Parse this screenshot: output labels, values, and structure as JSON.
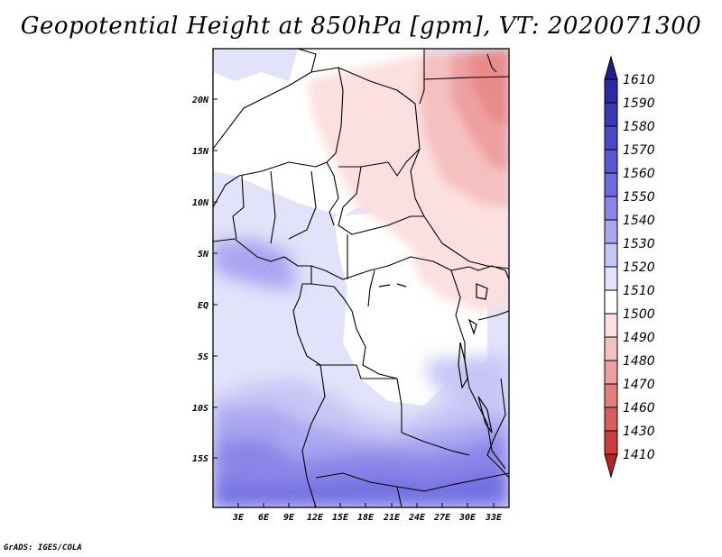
{
  "title": "Geopotential Height at 850hPa [gpm], VT: 2020071300",
  "credit": "GrADS: IGES/COLA",
  "lat_labels": [
    "20N",
    "15N",
    "10N",
    "5N",
    "EQ",
    "5S",
    "10S",
    "15S"
  ],
  "lon_labels": [
    "3E",
    "6E",
    "9E",
    "12E",
    "15E",
    "18E",
    "21E",
    "24E",
    "27E",
    "30E",
    "33E"
  ],
  "colorbar": {
    "labels": [
      "1610",
      "1590",
      "1580",
      "1570",
      "1560",
      "1550",
      "1540",
      "1530",
      "1520",
      "1510",
      "1500",
      "1490",
      "1480",
      "1470",
      "1460",
      "1430",
      "1410"
    ],
    "colors": [
      "#1d1f8f",
      "#2a2aa2",
      "#3a37b6",
      "#4b47c6",
      "#5c57d3",
      "#6d69de",
      "#8a86e8",
      "#aaa6f0",
      "#c8c6f6",
      "#e2e2fa",
      "#ffffff",
      "#fcdfdf",
      "#f6c0c0",
      "#eea0a0",
      "#e47f7f",
      "#d85e5e",
      "#cc3e3e",
      "#b52424"
    ]
  },
  "map": {
    "region": "Central Africa",
    "variable": "Geopotential Height at 850hPa",
    "units": "gpm",
    "valid_time": "2020071300"
  }
}
